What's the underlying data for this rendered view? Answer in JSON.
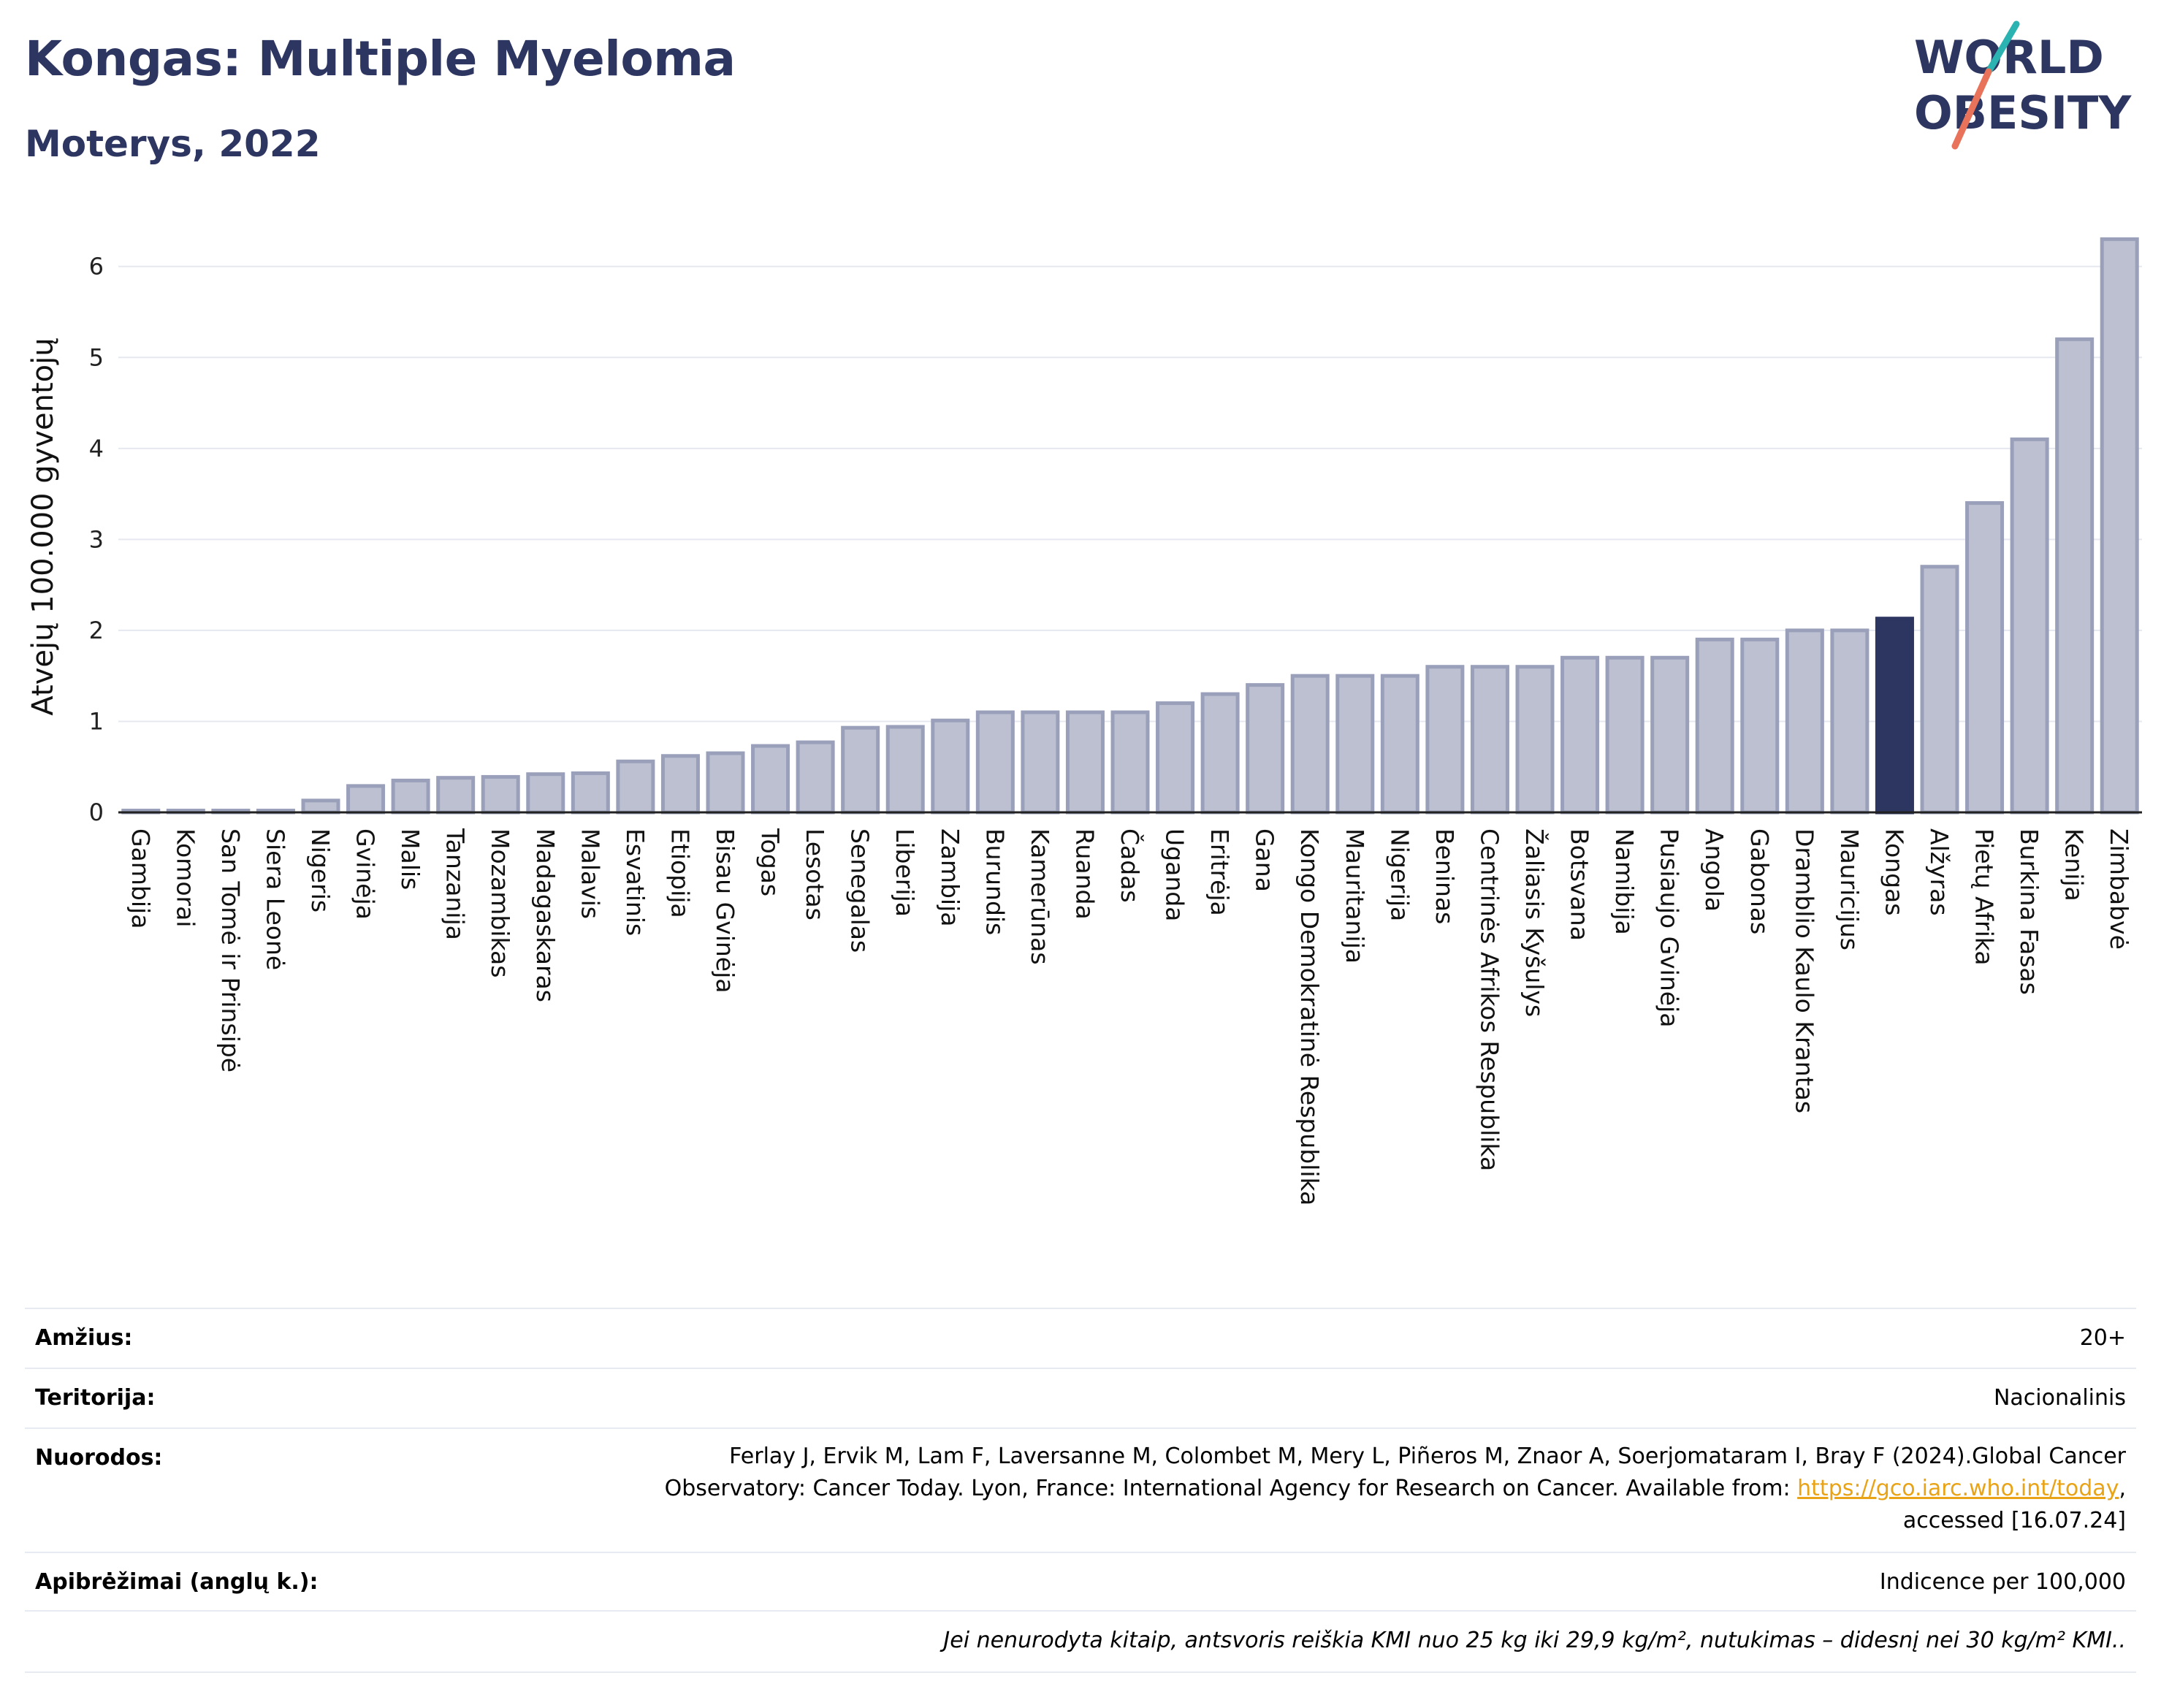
{
  "header": {
    "title": "Kongas: Multiple Myeloma",
    "subtitle": "Moterys, 2022"
  },
  "logo": {
    "line1": "WORLD",
    "line2": "OBESITY",
    "colors": [
      "#2d3561",
      "#2ab3b1",
      "#e8735a"
    ]
  },
  "colors": {
    "bar": "#bcc0d0",
    "bar_border": "#9aa0ba",
    "highlight": "#2d3561",
    "grid": "#e6e8f0",
    "text": "#2d3561"
  },
  "chart_data": {
    "type": "bar",
    "ylabel": "Atvejų 100.000 gyventojų",
    "ylim": [
      0,
      6.6
    ],
    "yticks": [
      0,
      1,
      2,
      3,
      4,
      5,
      6
    ],
    "highlight": "Kongas",
    "categories": [
      "Gambija",
      "Komorai",
      "San Tomė ir Prinsipė",
      "Siera Leonė",
      "Nigeris",
      "Gvinėja",
      "Malis",
      "Tanzanija",
      "Mozambikas",
      "Madagaskaras",
      "Malavis",
      "Esvatinis",
      "Etiopija",
      "Bisau Gvinėja",
      "Togas",
      "Lesotas",
      "Senegalas",
      "Liberija",
      "Zambija",
      "Burundis",
      "Kamerūnas",
      "Ruanda",
      "Čadas",
      "Uganda",
      "Eritrėja",
      "Gana",
      "Kongo Demokratinė Respublika",
      "Mauritanija",
      "Nigerija",
      "Beninas",
      "Centrinės Afrikos Respublika",
      "Žaliasis Kyšulys",
      "Botsvana",
      "Namibija",
      "Pusiaujo Gvinėja",
      "Angola",
      "Gabonas",
      "Dramblio Kaulo Krantas",
      "Mauricijus",
      "Kongas",
      "Alžyras",
      "Pietų Afrika",
      "Burkina Fasas",
      "Kenija",
      "Zimbabvė"
    ],
    "values": [
      0.02,
      0.02,
      0.02,
      0.02,
      0.13,
      0.29,
      0.35,
      0.38,
      0.39,
      0.42,
      0.43,
      0.56,
      0.62,
      0.65,
      0.73,
      0.77,
      0.93,
      0.94,
      1.01,
      1.1,
      1.1,
      1.1,
      1.1,
      1.2,
      1.3,
      1.4,
      1.5,
      1.5,
      1.5,
      1.6,
      1.6,
      1.6,
      1.7,
      1.7,
      1.7,
      1.9,
      1.9,
      2.0,
      2.0,
      2.13,
      2.7,
      3.4,
      4.1,
      5.2,
      6.3
    ]
  },
  "info": {
    "age_label": "Amžius:",
    "age_value": "20+",
    "territory_label": "Teritorija:",
    "territory_value": "Nacionalinis",
    "refs_label": "Nuorodos:",
    "refs_line1": "Ferlay J, Ervik M, Lam F, Laversanne M, Colombet M, Mery L, Piñeros M, Znaor A, Soerjomataram I, Bray F (2024).Global Cancer",
    "refs_line2": "Observatory: Cancer Today. Lyon, France: International Agency for Research on Cancer. Available from: ",
    "refs_link": "https://gco.iarc.who.int/today",
    "refs_line2_end": ",",
    "refs_line3": "accessed [16.07.24]",
    "definitions_label": "Apibrėžimai (anglų k.):",
    "definitions_value": "Indicence per 100,000",
    "footnote": "Jei nenurodyta kitaip, antsvoris reiškia KMI nuo 25 kg iki 29,9 kg/m², nutukimas – didesnį nei 30 kg/m² KMI.."
  }
}
